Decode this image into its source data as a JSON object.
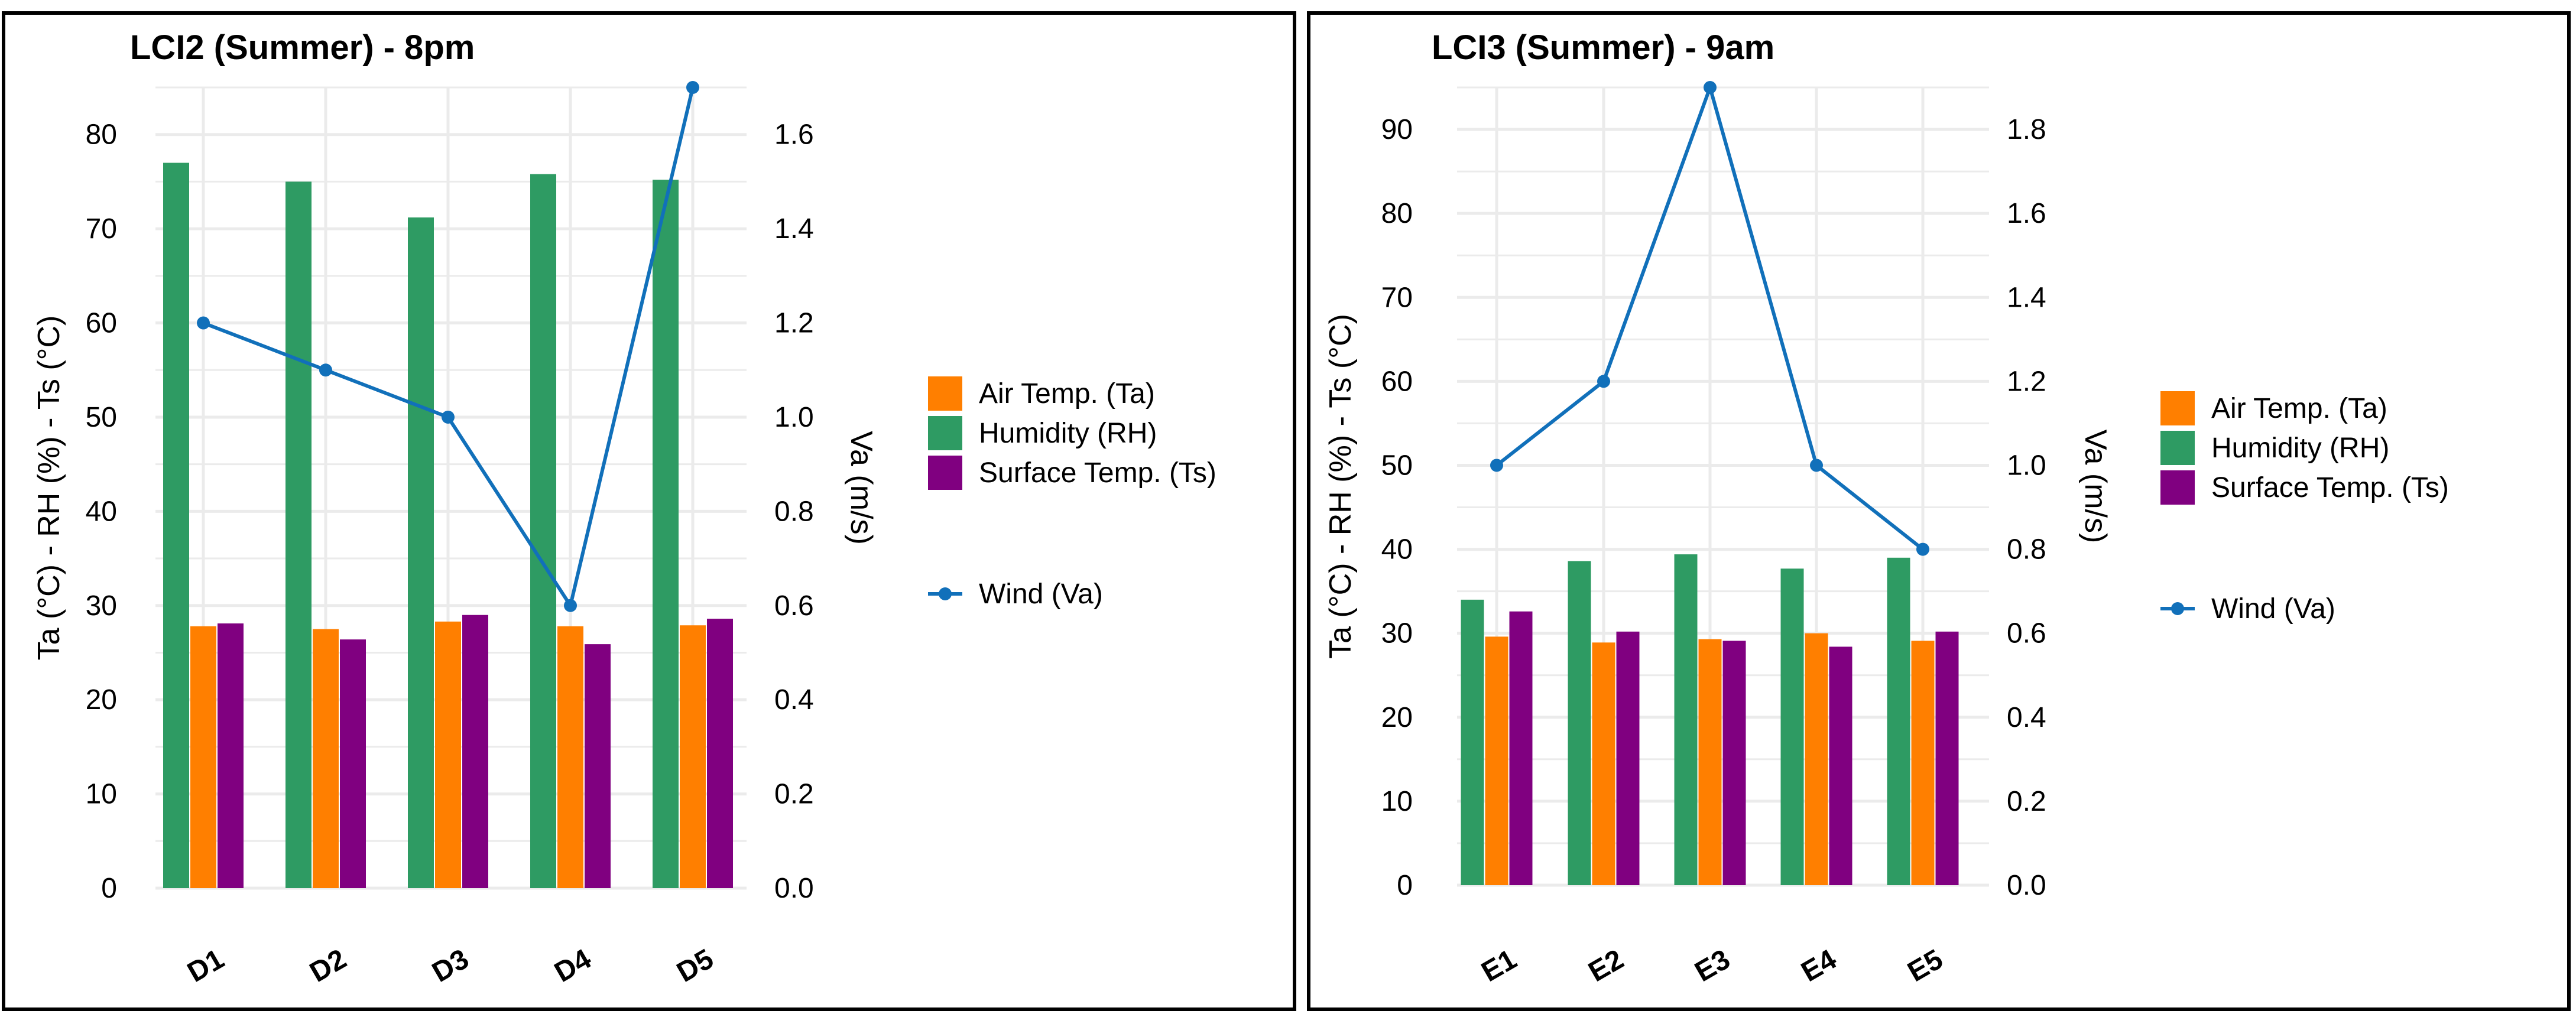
{
  "colors": {
    "air_temp": "#FF7F00",
    "humidity": "#2E9B63",
    "surface_temp": "#800080",
    "wind": "#1170BA",
    "grid": "#EBEBEB",
    "frame": "#000000",
    "text": "#000000",
    "background": "#FFFFFF"
  },
  "chart_data": [
    {
      "type": "bar",
      "title": "LCI2 (Summer) - 8pm",
      "xlabel": "",
      "ylabel": "Ta (°C) - RH (%) - Ts (°C)",
      "y2label": "Va (m/s)",
      "categories": [
        "D1",
        "D2",
        "D3",
        "D4",
        "D5"
      ],
      "ylim": [
        0,
        85
      ],
      "yticks": [
        0,
        10,
        20,
        30,
        40,
        50,
        60,
        70,
        80
      ],
      "y2lim": [
        0,
        1.7
      ],
      "y2ticks": [
        "0.0",
        "0.2",
        "0.4",
        "0.6",
        "0.8",
        "1.0",
        "1.2",
        "1.4",
        "1.6"
      ],
      "series": [
        {
          "name": "Humidity (RH)",
          "key": "humidity",
          "axis": "left",
          "values": [
            77,
            75,
            71.2,
            75.8,
            75.2
          ]
        },
        {
          "name": "Air Temp. (Ta)",
          "key": "air_temp",
          "axis": "left",
          "values": [
            27.8,
            27.5,
            28.3,
            27.8,
            27.9
          ]
        },
        {
          "name": "Surface Temp. (Ts)",
          "key": "surface_temp",
          "axis": "left",
          "values": [
            28.1,
            26.4,
            29.0,
            25.9,
            28.6
          ]
        }
      ],
      "line_series": {
        "name": "Wind (Va)",
        "key": "wind",
        "axis": "right",
        "values": [
          1.2,
          1.1,
          1.0,
          0.6,
          1.7
        ]
      },
      "legend": [
        "Air Temp. (Ta)",
        "Humidity (RH)",
        "Surface Temp. (Ts)"
      ],
      "legend_line": "Wind (Va)",
      "legend_position": "right",
      "grid": true
    },
    {
      "type": "bar",
      "title": "LCI3 (Summer) - 9am",
      "xlabel": "",
      "ylabel": "Ta (°C) - RH (%) - Ts (°C)",
      "y2label": "Va (m/s)",
      "categories": [
        "E1",
        "E2",
        "E3",
        "E4",
        "E5"
      ],
      "ylim": [
        0,
        95
      ],
      "yticks": [
        0,
        10,
        20,
        30,
        40,
        50,
        60,
        70,
        80,
        90
      ],
      "y2lim": [
        0,
        1.9
      ],
      "y2ticks": [
        "0.0",
        "0.2",
        "0.4",
        "0.6",
        "0.8",
        "1.0",
        "1.2",
        "1.4",
        "1.6",
        "1.8"
      ],
      "series": [
        {
          "name": "Humidity (RH)",
          "key": "humidity",
          "axis": "left",
          "values": [
            34,
            38.6,
            39.4,
            37.7,
            39
          ]
        },
        {
          "name": "Air Temp. (Ta)",
          "key": "air_temp",
          "axis": "left",
          "values": [
            29.6,
            28.9,
            29.3,
            30.0,
            29.1
          ]
        },
        {
          "name": "Surface Temp. (Ts)",
          "key": "surface_temp",
          "axis": "left",
          "values": [
            32.6,
            30.2,
            29.1,
            28.4,
            30.2
          ]
        }
      ],
      "line_series": {
        "name": "Wind (Va)",
        "key": "wind",
        "axis": "right",
        "values": [
          1.0,
          1.2,
          1.9,
          1.0,
          0.8
        ]
      },
      "legend": [
        "Air Temp. (Ta)",
        "Humidity (RH)",
        "Surface Temp. (Ts)"
      ],
      "legend_line": "Wind (Va)",
      "legend_position": "right",
      "grid": true
    }
  ]
}
